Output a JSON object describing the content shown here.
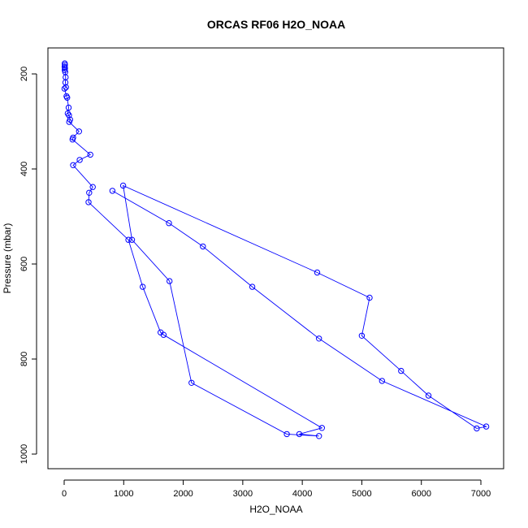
{
  "chart_data": {
    "type": "line",
    "title": "ORCAS RF06 H2O_NOAA",
    "xlabel": "H2O_NOAA",
    "ylabel": "Pressure (mbar)",
    "xlim": [
      -100,
      7300
    ],
    "ylim": [
      170,
      1005
    ],
    "y_reversed": true,
    "grid": false,
    "x_ticks": [
      0,
      1000,
      2000,
      3000,
      4000,
      5000,
      6000,
      7000
    ],
    "y_ticks": [
      200,
      400,
      600,
      800,
      1000
    ],
    "series": [
      {
        "color": "#0000ff",
        "marker": "open-circle",
        "points": [
          [
            10,
            178
          ],
          [
            12,
            181
          ],
          [
            8,
            185
          ],
          [
            14,
            188
          ],
          [
            10,
            192
          ],
          [
            18,
            196
          ],
          [
            25,
            207
          ],
          [
            20,
            218
          ],
          [
            30,
            228
          ],
          [
            5,
            231
          ],
          [
            40,
            247
          ],
          [
            50,
            250
          ],
          [
            75,
            271
          ],
          [
            60,
            283
          ],
          [
            80,
            287
          ],
          [
            100,
            296
          ],
          [
            85,
            301
          ],
          [
            250,
            321
          ],
          [
            150,
            334
          ],
          [
            140,
            338
          ],
          [
            440,
            370
          ],
          [
            260,
            381
          ],
          [
            150,
            392
          ],
          [
            480,
            438
          ],
          [
            420,
            450
          ],
          [
            410,
            470
          ],
          [
            1080,
            549
          ],
          [
            1320,
            648
          ],
          [
            1620,
            744
          ],
          [
            1670,
            749
          ],
          [
            4330,
            945
          ],
          [
            3950,
            958
          ],
          [
            4280,
            962
          ],
          [
            3740,
            958
          ],
          [
            2140,
            850
          ],
          [
            1770,
            636
          ],
          [
            1140,
            549
          ],
          [
            990,
            435
          ],
          [
            4250,
            618
          ],
          [
            5130,
            671
          ],
          [
            5000,
            751
          ],
          [
            5660,
            825
          ],
          [
            6120,
            877
          ],
          [
            6930,
            946
          ],
          [
            7090,
            942
          ],
          [
            5340,
            846
          ],
          [
            4280,
            757
          ],
          [
            3160,
            648
          ],
          [
            2330,
            563
          ],
          [
            1760,
            514
          ],
          [
            810,
            446
          ]
        ]
      }
    ]
  }
}
